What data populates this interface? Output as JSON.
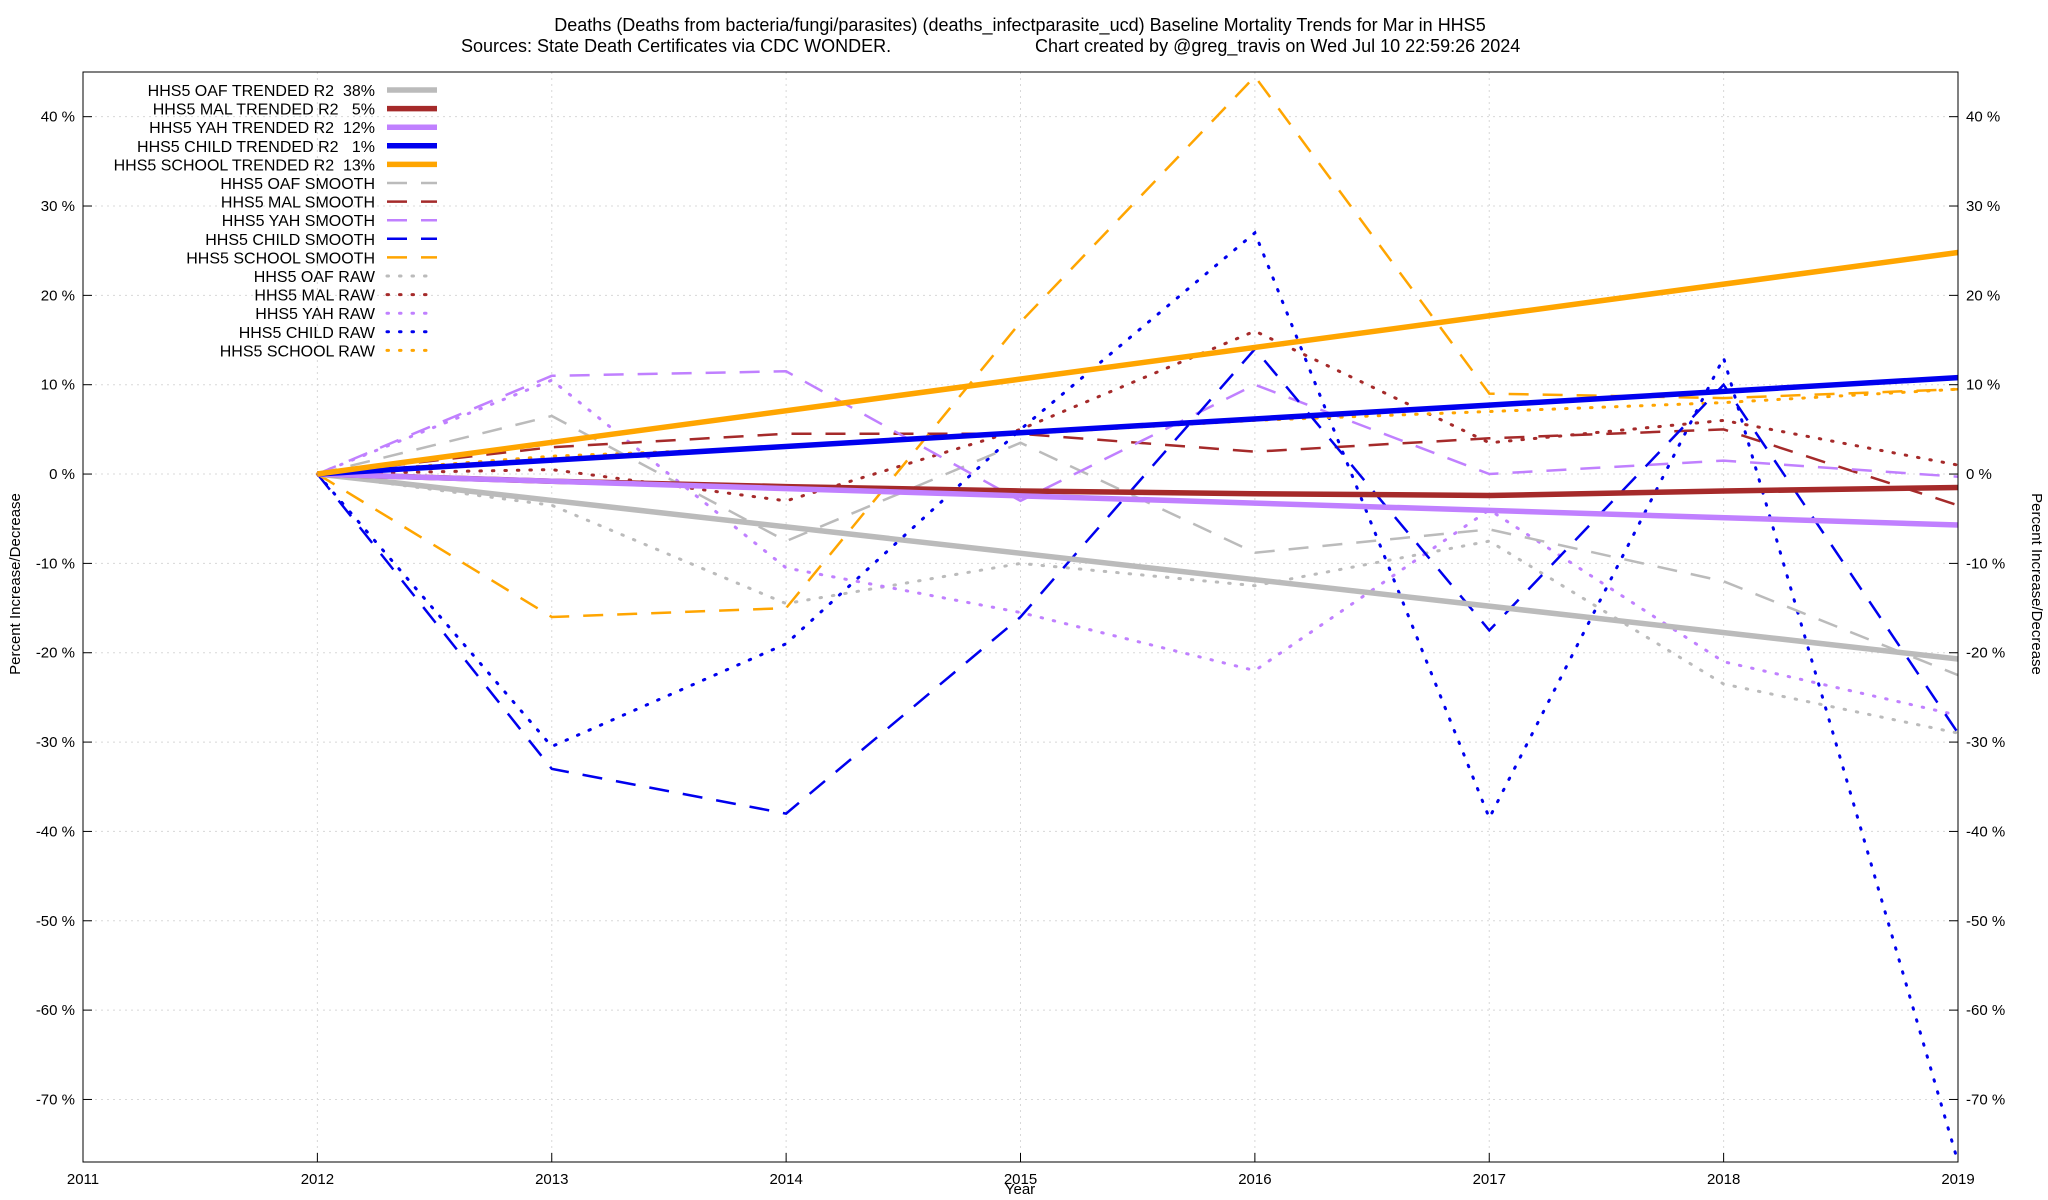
{
  "chart_data": {
    "type": "line",
    "title_line1": "Deaths (Deaths from bacteria/fungi/parasites) (deaths_infectparasite_ucd)  Baseline Mortality Trends for Mar in HHS5",
    "title_line2_left": "Sources: State Death Certificates via CDC WONDER.",
    "title_line2_right": "Chart created by @greg_travis on Wed Jul 10 22:59:26 2024",
    "xlabel": "Year",
    "ylabel_left": "Percent Increase/Decrease",
    "ylabel_right": "Percent Increase/Decrease",
    "xlim": [
      2011,
      2019
    ],
    "ylim": [
      -77,
      45
    ],
    "x_ticks": [
      2011,
      2012,
      2013,
      2014,
      2015,
      2016,
      2017,
      2018,
      2019
    ],
    "x_tick_labels": [
      "2011",
      "2012",
      "2013",
      "2014",
      "2015",
      "2016",
      "2017",
      "2018",
      "2019"
    ],
    "y_ticks": [
      40,
      30,
      20,
      10,
      0,
      -10,
      -20,
      -30,
      -40,
      -50,
      -60,
      -70
    ],
    "y_tick_labels": [
      "40 %",
      "30 %",
      "20 %",
      "10 %",
      "0 %",
      "-10 %",
      "-20 %",
      "-30 %",
      "-40 %",
      "-50 %",
      "-60 %",
      "-70 %"
    ],
    "grid": true,
    "legend_position": "top-left",
    "colors": {
      "oaf": "#bbbbbb",
      "mal": "#a52a2a",
      "yah": "#c080ff",
      "child": "#0000ee",
      "school": "#ffa500"
    },
    "series": [
      {
        "name": "HHS5 OAF TRENDED R2  38%",
        "group": "oaf",
        "style": "trend",
        "x": [
          2012,
          2019
        ],
        "values": [
          0,
          -20.7
        ]
      },
      {
        "name": "HHS5 MAL TRENDED R2   5%",
        "group": "mal",
        "style": "trend",
        "x": [
          2012,
          2013,
          2014,
          2015,
          2016,
          2017,
          2018,
          2019
        ],
        "values": [
          0,
          -0.8,
          -1.4,
          -1.9,
          -2.2,
          -2.4,
          -1.9,
          -1.5
        ]
      },
      {
        "name": "HHS5 YAH TRENDED R2  12%",
        "group": "yah",
        "style": "trend",
        "x": [
          2012,
          2019
        ],
        "values": [
          0,
          -5.7
        ]
      },
      {
        "name": "HHS5 CHILD TRENDED R2   1%",
        "group": "child",
        "style": "trend",
        "x": [
          2012,
          2019
        ],
        "values": [
          0,
          10.8
        ]
      },
      {
        "name": "HHS5 SCHOOL TRENDED R2  13%",
        "group": "school",
        "style": "trend",
        "x": [
          2012,
          2019
        ],
        "values": [
          0,
          24.8
        ]
      },
      {
        "name": "HHS5 OAF SMOOTH",
        "group": "oaf",
        "style": "smooth",
        "x": [
          2012,
          2013,
          2014,
          2015,
          2016,
          2017,
          2018,
          2019
        ],
        "values": [
          0,
          6.5,
          -7.5,
          3.5,
          -8.8,
          -6.2,
          -12.0,
          -22.5
        ]
      },
      {
        "name": "HHS5 MAL SMOOTH",
        "group": "mal",
        "style": "smooth",
        "x": [
          2012,
          2013,
          2014,
          2015,
          2016,
          2017,
          2018,
          2019
        ],
        "values": [
          0,
          3.0,
          4.5,
          4.5,
          2.5,
          4.0,
          5.0,
          -3.5
        ]
      },
      {
        "name": "HHS5 YAH SMOOTH",
        "group": "yah",
        "style": "smooth",
        "x": [
          2012,
          2013,
          2014,
          2015,
          2016,
          2017,
          2018,
          2019
        ],
        "values": [
          0,
          11.0,
          11.5,
          -3.0,
          10.0,
          0.0,
          1.5,
          -0.3
        ]
      },
      {
        "name": "HHS5 CHILD SMOOTH",
        "group": "child",
        "style": "smooth",
        "x": [
          2012,
          2013,
          2014,
          2015,
          2016,
          2017,
          2018,
          2019
        ],
        "values": [
          0,
          -33.0,
          -38.0,
          -16.0,
          14.0,
          -17.5,
          10.0,
          -29.0
        ]
      },
      {
        "name": "HHS5 SCHOOL SMOOTH",
        "group": "school",
        "style": "smooth",
        "x": [
          2012,
          2013,
          2014,
          2015,
          2016,
          2017,
          2018,
          2019
        ],
        "values": [
          0,
          -16.0,
          -15.0,
          17.0,
          44.5,
          9.0,
          8.5,
          9.5
        ]
      },
      {
        "name": "HHS5 OAF RAW",
        "group": "oaf",
        "style": "raw",
        "x": [
          2012,
          2013,
          2014,
          2015,
          2016,
          2017,
          2018,
          2019
        ],
        "values": [
          0,
          -3.5,
          -14.5,
          -10.0,
          -12.5,
          -7.5,
          -23.5,
          -29.0
        ]
      },
      {
        "name": "HHS5 MAL RAW",
        "group": "mal",
        "style": "raw",
        "x": [
          2012,
          2013,
          2014,
          2015,
          2016,
          2017,
          2018,
          2019
        ],
        "values": [
          0,
          0.5,
          -3.0,
          5.0,
          16.0,
          3.5,
          6.0,
          1.0
        ]
      },
      {
        "name": "HHS5 YAH RAW",
        "group": "yah",
        "style": "raw",
        "x": [
          2012,
          2013,
          2014,
          2015,
          2016,
          2017,
          2018,
          2019
        ],
        "values": [
          0,
          10.5,
          -10.5,
          -15.5,
          -22.0,
          -4.0,
          -21.0,
          -27.0
        ]
      },
      {
        "name": "HHS5 CHILD RAW",
        "group": "child",
        "style": "raw",
        "x": [
          2012,
          2013,
          2014,
          2015,
          2016,
          2017,
          2018,
          2019
        ],
        "values": [
          0,
          -30.5,
          -19.0,
          5.0,
          27.0,
          -38.5,
          13.0,
          -77.0
        ]
      },
      {
        "name": "HHS5 SCHOOL RAW",
        "group": "school",
        "style": "raw",
        "x": [
          2012,
          2013,
          2014,
          2015,
          2016,
          2017,
          2018,
          2019
        ],
        "values": [
          0,
          2.0,
          3.0,
          4.5,
          6.0,
          7.0,
          8.0,
          9.5
        ]
      }
    ]
  }
}
